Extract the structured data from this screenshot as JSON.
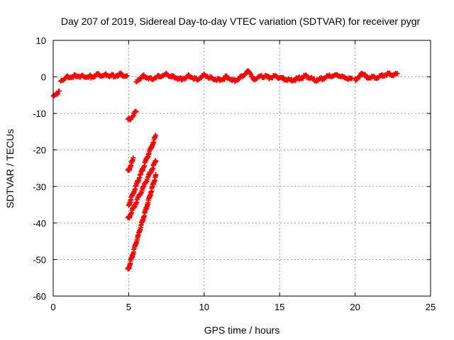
{
  "chart_data": {
    "type": "scatter",
    "title": "Day 207 of 2019, Sidereal Day-to-day VTEC variation (SDTVAR) for receiver pygr",
    "xlabel": "GPS time / hours",
    "ylabel": "SDTVAR / TECUs",
    "xlim": [
      0,
      25
    ],
    "ylim": [
      -60,
      10
    ],
    "xticks": [
      0,
      5,
      10,
      15,
      20,
      25
    ],
    "yticks": [
      -60,
      -50,
      -40,
      -30,
      -20,
      -10,
      0,
      10
    ],
    "grid": true,
    "marker": "plus",
    "color": "#ff0000",
    "series": [
      {
        "segments": [
          {
            "x": [
              0.0,
              0.4
            ],
            "y": [
              -5.0,
              -4.2
            ]
          },
          {
            "x": [
              0.5,
              1.0,
              1.5,
              2.0,
              2.5,
              3.0,
              3.5,
              4.0,
              4.5,
              4.9
            ],
            "y": [
              -0.8,
              0.0,
              0.3,
              0.2,
              0.1,
              0.6,
              0.5,
              0.4,
              0.7,
              0.3
            ]
          },
          {
            "x": [
              4.95,
              5.5
            ],
            "y": [
              -12.0,
              -9.5
            ]
          },
          {
            "x": [
              4.95,
              5.3
            ],
            "y": [
              -26.0,
              -22.5
            ]
          },
          {
            "x": [
              5.0,
              6.8
            ],
            "y": [
              -35.0,
              -16.0
            ]
          },
          {
            "x": [
              4.95,
              6.8
            ],
            "y": [
              -39.0,
              -23.0
            ]
          },
          {
            "x": [
              4.95,
              6.8
            ],
            "y": [
              -53.0,
              -27.0
            ]
          },
          {
            "x": [
              5.5,
              6.0,
              6.5,
              7.0,
              7.5,
              8.0,
              8.5,
              9.0,
              9.5,
              10.0
            ],
            "y": [
              -1.0,
              0.3,
              -0.5,
              0.2,
              0.8,
              0.0,
              -0.6,
              0.4,
              -0.8,
              0.5
            ]
          },
          {
            "x": [
              10.0,
              10.5,
              11.0,
              11.5,
              12.0,
              12.5,
              12.9,
              13.3,
              13.8,
              14.3,
              14.8,
              15.3,
              15.8,
              16.3,
              16.8,
              17.3,
              17.8,
              18.3,
              18.8,
              19.3,
              19.8
            ],
            "y": [
              0.6,
              -0.4,
              -0.9,
              0.0,
              -1.0,
              0.2,
              1.5,
              -0.5,
              0.3,
              -0.2,
              0.1,
              -0.6,
              -1.0,
              -0.3,
              0.2,
              -0.9,
              -0.5,
              0.3,
              0.5,
              -0.2,
              -0.6
            ]
          },
          {
            "x": [
              20.0,
              20.4,
              20.8,
              21.3,
              21.8,
              22.3,
              22.8
            ],
            "y": [
              -0.8,
              0.7,
              0.1,
              -0.3,
              0.5,
              0.8,
              0.6
            ]
          }
        ]
      }
    ]
  }
}
